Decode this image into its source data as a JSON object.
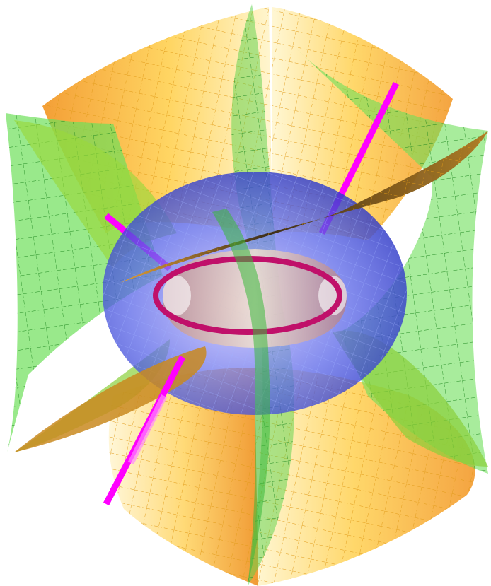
{
  "scene": {
    "subject": "toroidal-coordinates-surfaces",
    "colors": {
      "background": "#ffffff",
      "orange_surface": "#f4a030",
      "orange_light": "#fff1b0",
      "orange_mesh": "#e0a020",
      "green_surface": "#5ad24a",
      "green_mesh": "#2a9a2a",
      "blue_torus": "#4450d8",
      "blue_mesh": "#8aa0ff",
      "magenta_axis": "#ff00ff",
      "crimson_circle": "#c0106a",
      "dark_saddle": "#3a2a10"
    },
    "layers": [
      {
        "name": "orange-spindle-surface",
        "icon": "surface"
      },
      {
        "name": "green-half-plane",
        "icon": "surface"
      },
      {
        "name": "blue-torus",
        "icon": "surface"
      },
      {
        "name": "magenta-axis-line",
        "icon": "line"
      },
      {
        "name": "crimson-focal-circle",
        "icon": "circle"
      }
    ]
  }
}
